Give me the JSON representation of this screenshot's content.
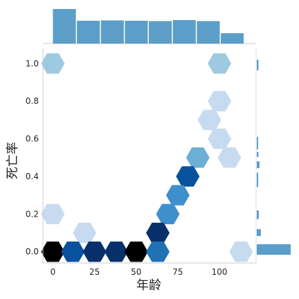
{
  "chart_data": {
    "type": "hexbin-jointplot",
    "title": "",
    "xlabel": "年龄",
    "ylabel": "死亡率",
    "xticks": [
      0,
      25,
      50,
      75,
      100
    ],
    "yticks": [
      0.0,
      0.2,
      0.4,
      0.6,
      0.8,
      1.0
    ],
    "ytick_labels": [
      "0.0",
      "0.2",
      "0.4",
      "0.6",
      "0.8",
      "1.0"
    ],
    "xlim": [
      -6,
      122
    ],
    "ylim": [
      -0.06,
      1.08
    ],
    "grid": false,
    "colormap": "Blues",
    "hex_cells": [
      {
        "x": 0,
        "y": 1.0,
        "density": 0.2
      },
      {
        "x": 100,
        "y": 1.0,
        "density": 0.2
      },
      {
        "x": 100,
        "y": 0.8,
        "density": 0.1
      },
      {
        "x": 94,
        "y": 0.7,
        "density": 0.15
      },
      {
        "x": 100,
        "y": 0.6,
        "density": 0.12
      },
      {
        "x": 87,
        "y": 0.5,
        "density": 0.38
      },
      {
        "x": 106,
        "y": 0.5,
        "density": 0.12
      },
      {
        "x": 81,
        "y": 0.4,
        "density": 0.7
      },
      {
        "x": 75,
        "y": 0.3,
        "density": 0.45
      },
      {
        "x": 69,
        "y": 0.2,
        "density": 0.5
      },
      {
        "x": 0,
        "y": 0.2,
        "density": 0.1
      },
      {
        "x": 19,
        "y": 0.1,
        "density": 0.1
      },
      {
        "x": 63,
        "y": 0.1,
        "density": 0.88
      },
      {
        "x": 0,
        "y": 0.0,
        "density": 1.0
      },
      {
        "x": 12,
        "y": 0.0,
        "density": 0.75
      },
      {
        "x": 25,
        "y": 0.0,
        "density": 0.93
      },
      {
        "x": 38,
        "y": 0.0,
        "density": 0.9
      },
      {
        "x": 50,
        "y": 0.0,
        "density": 0.95
      },
      {
        "x": 63,
        "y": 0.0,
        "density": 0.6
      },
      {
        "x": 113,
        "y": 0.0,
        "density": 0.1
      }
    ],
    "top_histogram": {
      "bin_edges": [
        0,
        14.4,
        28.8,
        43.2,
        57.6,
        72,
        86.4,
        100.8,
        115.2
      ],
      "relative_heights": [
        1.0,
        0.66,
        0.67,
        0.66,
        0.65,
        0.68,
        0.65,
        0.3
      ]
    },
    "right_histogram": {
      "bins": [
        {
          "y0": -0.02,
          "y1": 0.04,
          "relative_width": 1.0
        },
        {
          "y0": 0.08,
          "y1": 0.12,
          "relative_width": 0.12
        },
        {
          "y0": 0.17,
          "y1": 0.22,
          "relative_width": 0.06
        },
        {
          "y0": 0.34,
          "y1": 0.42,
          "relative_width": 0.04
        },
        {
          "y0": 0.44,
          "y1": 0.48,
          "relative_width": 0.08
        },
        {
          "y0": 0.5,
          "y1": 0.53,
          "relative_width": 0.05
        },
        {
          "y0": 0.54,
          "y1": 0.61,
          "relative_width": 0.04
        },
        {
          "y0": 0.96,
          "y1": 1.02,
          "relative_width": 0.05
        }
      ]
    },
    "colors": {
      "histogram": "#5b9ec9",
      "scale": [
        "#eaf3fb",
        "#c6dbef",
        "#9ecae1",
        "#6baed6",
        "#3f8fcd",
        "#2171b5",
        "#08519c",
        "#08306b",
        "#000000"
      ]
    }
  }
}
